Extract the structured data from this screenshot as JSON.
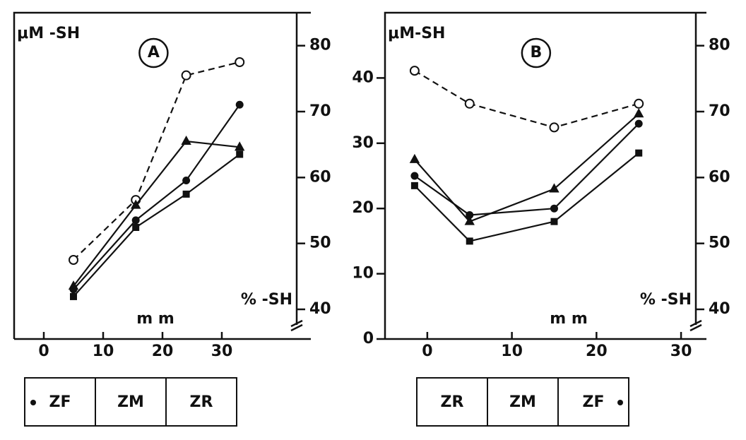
{
  "chart_data": [
    {
      "type": "line",
      "title": "A",
      "ylabel": "μM -SH",
      "y2label": "% -SH",
      "xlabel": "m m",
      "xlim": [
        -5,
        45
      ],
      "xticks": [
        0,
        10,
        20,
        30
      ],
      "ylim": [
        0,
        50
      ],
      "y2lim": [
        35.5,
        85
      ],
      "y2ticks": [
        40,
        50,
        60,
        70,
        80
      ],
      "zones": [
        "ZF",
        "ZM",
        "ZR"
      ],
      "x": [
        5,
        15.5,
        24,
        33
      ],
      "series": [
        {
          "marker": "open-circle",
          "dashed": true,
          "axis": "y2",
          "color": "#111",
          "values": [
            47.5,
            56.6,
            75.5,
            77.5
          ]
        },
        {
          "marker": "circle",
          "color": "#111",
          "values": [
            7.6,
            18.2,
            24.3,
            35.9
          ]
        },
        {
          "marker": "triangle",
          "color": "#111",
          "values": [
            8.1,
            20.5,
            30.3,
            29.4
          ]
        },
        {
          "marker": "square",
          "color": "#111",
          "values": [
            6.5,
            17.1,
            22.2,
            28.3
          ]
        }
      ]
    },
    {
      "type": "line",
      "title": "B",
      "ylabel": "μM-SH",
      "y2label": "% -SH",
      "xlabel": "m m",
      "xlim": [
        -5,
        33
      ],
      "xticks": [
        0,
        10,
        20,
        30
      ],
      "ylim": [
        0,
        50
      ],
      "yticks": [
        0,
        10,
        20,
        30,
        40
      ],
      "y2lim": [
        35.5,
        85
      ],
      "y2ticks": [
        40,
        50,
        60,
        70,
        80
      ],
      "zones": [
        "ZR",
        "ZM",
        "ZF"
      ],
      "x": [
        -1.5,
        5,
        15,
        25
      ],
      "series": [
        {
          "marker": "open-circle",
          "dashed": true,
          "axis": "y2",
          "color": "#111",
          "values": [
            76.2,
            71.2,
            67.6,
            71.2
          ]
        },
        {
          "marker": "circle",
          "color": "#111",
          "values": [
            25,
            19,
            20,
            33
          ]
        },
        {
          "marker": "triangle",
          "color": "#111",
          "values": [
            27.5,
            18,
            23,
            34.5
          ]
        },
        {
          "marker": "square",
          "color": "#111",
          "values": [
            23.5,
            15,
            18,
            28.5
          ]
        }
      ]
    }
  ]
}
